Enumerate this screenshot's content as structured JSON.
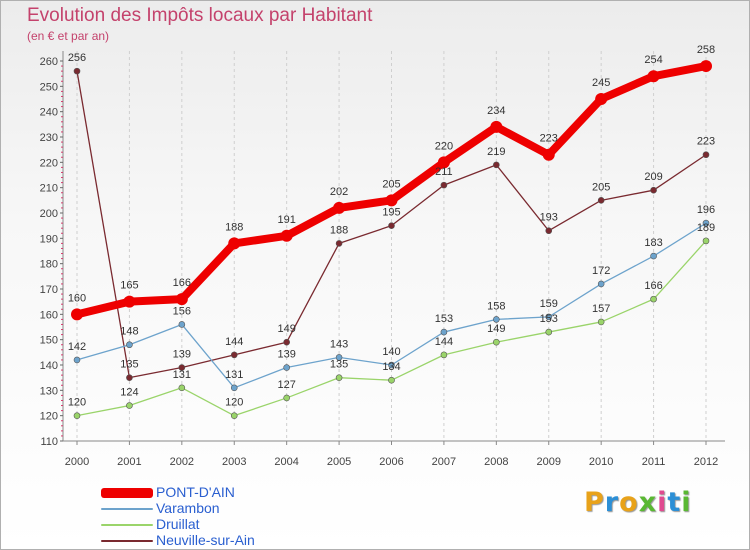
{
  "title": "Evolution des Impôts locaux par Habitant",
  "subtitle": "(en € et par an)",
  "brand": {
    "text": "Proxiti",
    "colors": [
      "#e8a21a",
      "#2c8fd6",
      "#e8a21a",
      "#5ab833",
      "#e04a8f",
      "#2c8fd6",
      "#5ab833"
    ]
  },
  "chart_data": {
    "type": "line",
    "x": [
      "2000",
      "2001",
      "2002",
      "2003",
      "2004",
      "2005",
      "2006",
      "2007",
      "2008",
      "2009",
      "2010",
      "2011",
      "2012"
    ],
    "ylim": [
      110,
      260
    ],
    "yticks": [
      110,
      120,
      130,
      140,
      150,
      160,
      170,
      180,
      190,
      200,
      210,
      220,
      230,
      240,
      250,
      260
    ],
    "grid": "vertical-dashed",
    "legend_position": "bottom-left",
    "series": [
      {
        "name": "PONT-D'AIN",
        "color": "#ee0000",
        "values": [
          160,
          165,
          166,
          188,
          191,
          202,
          205,
          220,
          234,
          223,
          245,
          254,
          258
        ],
        "labels": [
          "160",
          "165",
          "166",
          "188",
          "191",
          "202",
          "205",
          "220",
          "234",
          "223",
          "245",
          "254",
          "258"
        ]
      },
      {
        "name": "Varambon",
        "color": "#6da3cc",
        "values": [
          142,
          148,
          156,
          131,
          139,
          143,
          140,
          153,
          158,
          159,
          172,
          183,
          196
        ],
        "labels": [
          "142",
          "148",
          "156",
          "131",
          "139",
          "143",
          "140",
          "153",
          "158",
          "159",
          "172",
          "183",
          "196"
        ]
      },
      {
        "name": "Druillat",
        "color": "#9ad46a",
        "values": [
          120,
          124,
          131,
          120,
          127,
          135,
          134,
          144,
          149,
          153,
          157,
          166,
          189
        ],
        "labels": [
          "120",
          "124",
          "131",
          "120",
          "127",
          "135",
          "134",
          "144",
          "149",
          "153",
          "157",
          "166",
          "189"
        ]
      },
      {
        "name": "Neuville-sur-Ain",
        "color": "#7a2a30",
        "values": [
          256,
          135,
          139,
          144,
          149,
          188,
          195,
          211,
          219,
          193,
          205,
          209,
          223
        ],
        "labels": [
          "256",
          "135",
          "139",
          "144",
          "149",
          "188",
          "195",
          "211",
          "219",
          "193",
          "205",
          "209",
          "223"
        ]
      }
    ]
  }
}
